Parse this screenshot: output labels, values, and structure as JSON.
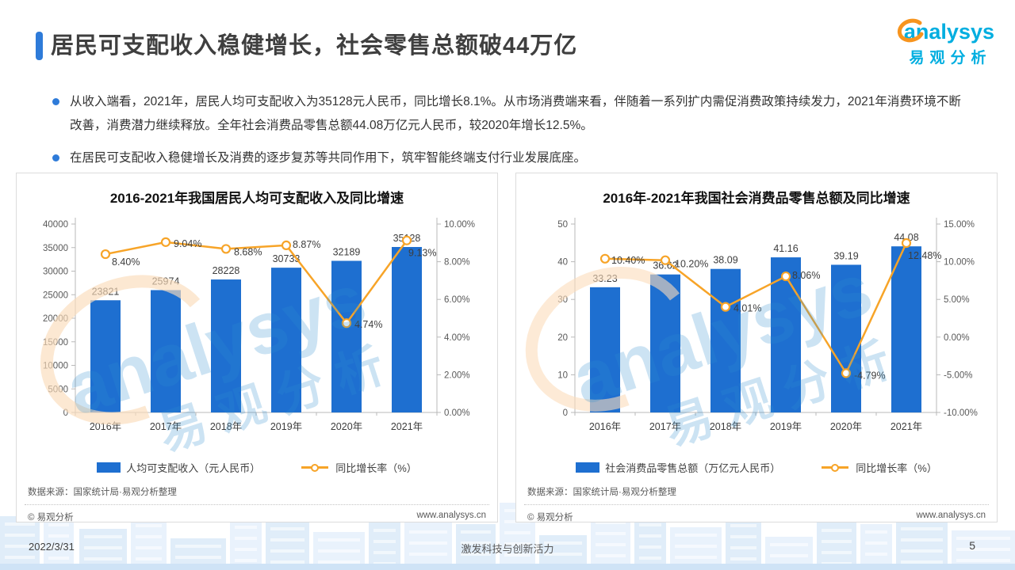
{
  "header": {
    "title": "居民可支配收入稳健增长，社会零售总额破44万亿",
    "accent_color": "#2e7bd9"
  },
  "logo": {
    "brand": "analysys",
    "brand_cn": "易观分析",
    "cyan": "#00aee0",
    "orange": "#f7941e"
  },
  "bullets": [
    "从收入端看，2021年，居民人均可支配收入为35128元人民币，同比增长8.1%。从市场消费端来看，伴随着一系列扩内需促消费政策持续发力，2021年消费环境不断改善，消费潜力继续释放。全年社会消费品零售总额44.08万亿元人民币，较2020年增长12.5%。",
    "在居民可支配收入稳健增长及消费的逐步复苏等共同作用下，筑牢智能终端支付行业发展底座。"
  ],
  "chart_data": [
    {
      "type": "bar",
      "title": "2016-2021年我国居民人均可支配收入及同比增速",
      "categories": [
        "2016年",
        "2017年",
        "2018年",
        "2019年",
        "2020年",
        "2021年"
      ],
      "series": [
        {
          "name": "人均可支配收入（元人民币）",
          "kind": "bar",
          "axis": "left",
          "color": "#1e6fd0",
          "values": [
            23821,
            25974,
            28228,
            30733,
            32189,
            35128
          ],
          "labels": [
            "23821",
            "25974",
            "28228",
            "30733",
            "32189",
            "35128"
          ]
        },
        {
          "name": "同比增长率（%）",
          "kind": "line",
          "axis": "right",
          "color": "#f7a428",
          "values": [
            8.4,
            9.04,
            8.68,
            8.87,
            4.74,
            9.13
          ],
          "labels": [
            "8.40%",
            "9.04%",
            "8.68%",
            "8.87%",
            "4.74%",
            "9.13%"
          ],
          "label_offsets": [
            [
              8,
              14
            ],
            [
              10,
              6
            ],
            [
              10,
              8
            ],
            [
              8,
              3
            ],
            [
              10,
              6
            ],
            [
              2,
              20
            ]
          ]
        }
      ],
      "left_axis": {
        "min": 0,
        "max": 40000,
        "step": 5000,
        "ticks": [
          "0",
          "5000",
          "10000",
          "15000",
          "20000",
          "25000",
          "30000",
          "35000",
          "40000"
        ]
      },
      "right_axis": {
        "min": 0,
        "max": 10,
        "step": 2,
        "ticks": [
          "0.00%",
          "2.00%",
          "4.00%",
          "6.00%",
          "8.00%",
          "10.00%"
        ]
      },
      "grid": false,
      "legend_position": "bottom",
      "source": "数据来源：国家统计局·易观分析整理",
      "footer_left": "© 易观分析",
      "footer_right": "www.analysys.cn"
    },
    {
      "type": "bar",
      "title": "2016年-2021年我国社会消费品零售总额及同比增速",
      "categories": [
        "2016年",
        "2017年",
        "2018年",
        "2019年",
        "2020年",
        "2021年"
      ],
      "series": [
        {
          "name": "社会消费品零售总额（万亿元人民币）",
          "kind": "bar",
          "axis": "left",
          "color": "#1e6fd0",
          "values": [
            33.23,
            36.62,
            38.09,
            41.16,
            39.19,
            44.08
          ],
          "labels": [
            "33.23",
            "36.62",
            "38.09",
            "41.16",
            "39.19",
            "44.08"
          ]
        },
        {
          "name": "同比增长率（%）",
          "kind": "line",
          "axis": "right",
          "color": "#f7a428",
          "values": [
            10.4,
            10.2,
            4.01,
            8.06,
            -4.79,
            12.48
          ],
          "labels": [
            "10.40%",
            "10.20%",
            "4.01%",
            "8.06%",
            "-4.79%",
            "12.48%"
          ],
          "label_offsets": [
            [
              8,
              6
            ],
            [
              12,
              9
            ],
            [
              10,
              6
            ],
            [
              8,
              3
            ],
            [
              10,
              7
            ],
            [
              2,
              20
            ]
          ]
        }
      ],
      "left_axis": {
        "min": 0,
        "max": 50,
        "step": 10,
        "ticks": [
          "0",
          "10",
          "20",
          "30",
          "40",
          "50"
        ]
      },
      "right_axis": {
        "min": -10,
        "max": 15,
        "step": 5,
        "ticks": [
          "-10.00%",
          "-5.00%",
          "0.00%",
          "5.00%",
          "10.00%",
          "15.00%"
        ]
      },
      "grid": false,
      "legend_position": "bottom",
      "source": "数据来源：国家统计局·易观分析整理",
      "footer_left": "© 易观分析",
      "footer_right": "www.analysys.cn"
    }
  ],
  "footer": {
    "date": "2022/3/31",
    "slogan": "激发科技与创新活力",
    "page": "5"
  }
}
